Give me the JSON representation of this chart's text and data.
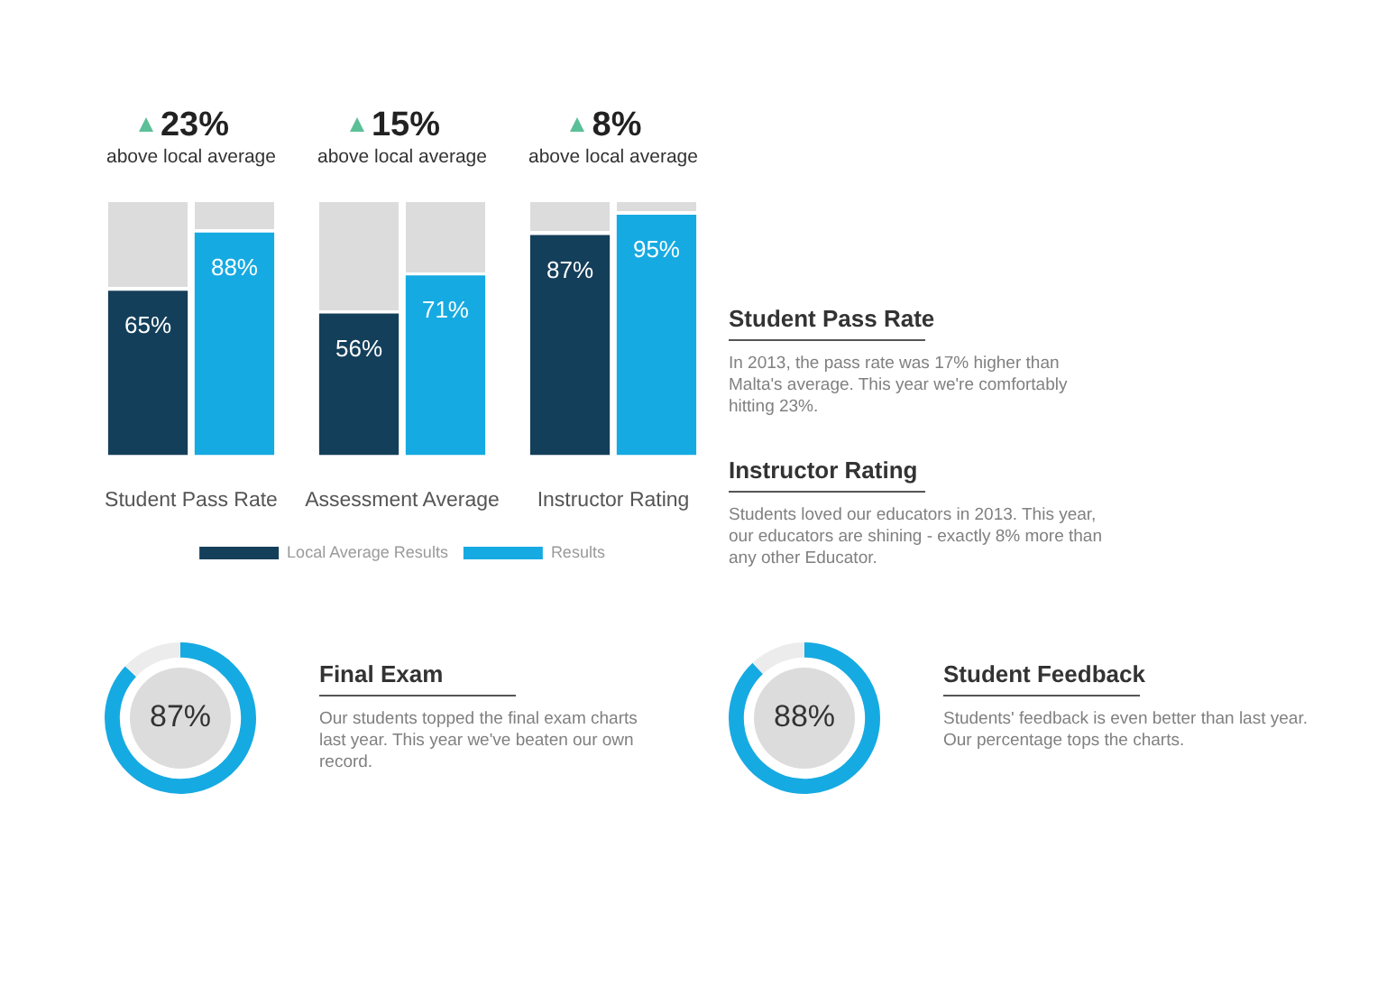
{
  "chart_data": [
    {
      "type": "bar",
      "categories": [
        "Student Pass Rate",
        "Assessment Average",
        "Instructor Rating"
      ],
      "series": [
        {
          "name": "Local Average Results",
          "color": "#143f5a",
          "values": [
            65,
            56,
            87
          ],
          "value_labels": [
            "65%",
            "56%",
            "87%"
          ]
        },
        {
          "name": "Results",
          "color": "#16aae2",
          "values": [
            88,
            71,
            95
          ],
          "value_labels": [
            "88%",
            "71%",
            "95%"
          ]
        }
      ],
      "ylim": [
        0,
        100
      ],
      "tick_labels": "x",
      "legend": "bottom",
      "annotations": [
        "23%",
        "above local average",
        "15%",
        "above local average",
        "8%",
        "above local average"
      ]
    },
    {
      "type": "other",
      "title": "Student Pass Rate",
      "annotations": [
        "In 2013, the pass rate was 17% higher than Malta's average. This year we're comfortably hitting 23%."
      ]
    },
    {
      "type": "other",
      "title": "Instructor Rating",
      "annotations": [
        "Students loved our educators in 2013. This year, our educators are shining - exactly 8% more than any other Educator."
      ]
    },
    {
      "type": "donut",
      "title": "Final Exam",
      "categories": [
        null,
        null
      ],
      "values": [
        87,
        13
      ],
      "colors": [
        "#16aae2",
        "#ececec"
      ],
      "value_labels": [
        "87%",
        null
      ],
      "annotations": [
        "Our students topped the final exam charts last year. This year we've beaten our own record."
      ]
    },
    {
      "type": "donut",
      "title": "Student Feedback",
      "categories": [
        null,
        null
      ],
      "values": [
        88,
        12
      ],
      "colors": [
        "#16aae2",
        "#ececec"
      ],
      "value_labels": [
        "88%",
        null
      ],
      "annotations": [
        "Students' feedback is even better than last year. Our percentage tops the charts."
      ]
    }
  ]
}
